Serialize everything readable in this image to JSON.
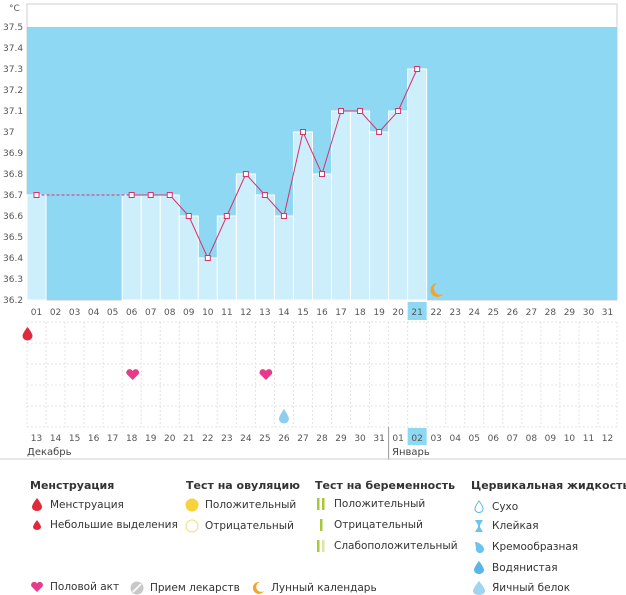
{
  "chart_data": {
    "type": "bar",
    "unit": "°C",
    "ylim": [
      36.2,
      37.5
    ],
    "yticks": [
      "36.2",
      "36.3",
      "36.4",
      "36.5",
      "36.6",
      "36.7",
      "36.8",
      "36.9",
      "37",
      "37.1",
      "37.2",
      "37.3",
      "37.4",
      "37.5"
    ],
    "cycle_days": [
      "01",
      "02",
      "03",
      "04",
      "05",
      "06",
      "07",
      "08",
      "09",
      "10",
      "11",
      "12",
      "13",
      "14",
      "15",
      "16",
      "17",
      "18",
      "19",
      "20",
      "21",
      "22",
      "23",
      "24",
      "25",
      "26",
      "27",
      "28",
      "29",
      "30",
      "31"
    ],
    "current_day": "21",
    "values": [
      36.7,
      null,
      null,
      null,
      null,
      36.7,
      36.7,
      36.7,
      36.6,
      36.4,
      36.6,
      36.8,
      36.7,
      36.6,
      37.0,
      36.8,
      37.1,
      37.1,
      37.0,
      37.1,
      37.3,
      null,
      null,
      null,
      null,
      null,
      null,
      null,
      null,
      null,
      null
    ],
    "dates": [
      {
        "t": "13",
        "weekend": true
      },
      {
        "t": "14",
        "weekend": false
      },
      {
        "t": "15",
        "weekend": false
      },
      {
        "t": "16",
        "weekend": false
      },
      {
        "t": "17",
        "weekend": false
      },
      {
        "t": "18",
        "weekend": false
      },
      {
        "t": "19",
        "weekend": true
      },
      {
        "t": "20",
        "weekend": true
      },
      {
        "t": "21",
        "weekend": false
      },
      {
        "t": "22",
        "weekend": false
      },
      {
        "t": "23",
        "weekend": false
      },
      {
        "t": "24",
        "weekend": false
      },
      {
        "t": "25",
        "weekend": false
      },
      {
        "t": "26",
        "weekend": true
      },
      {
        "t": "27",
        "weekend": true
      },
      {
        "t": "28",
        "weekend": false
      },
      {
        "t": "29",
        "weekend": false
      },
      {
        "t": "30",
        "weekend": false
      },
      {
        "t": "31",
        "weekend": false
      },
      {
        "t": "01",
        "weekend": false
      },
      {
        "t": "02",
        "weekend": true,
        "today": true
      },
      {
        "t": "03",
        "weekend": true
      },
      {
        "t": "04",
        "weekend": false
      },
      {
        "t": "05",
        "weekend": false
      },
      {
        "t": "06",
        "weekend": false
      },
      {
        "t": "07",
        "weekend": false
      },
      {
        "t": "08",
        "weekend": false
      },
      {
        "t": "09",
        "weekend": true
      },
      {
        "t": "10",
        "weekend": true
      },
      {
        "t": "11",
        "weekend": false
      },
      {
        "t": "12",
        "weekend": false
      }
    ],
    "months": [
      {
        "label": "Декабрь"
      },
      {
        "label": "Январь"
      }
    ],
    "markers": {
      "menstruation": [
        "01"
      ],
      "intercourse": [
        "06",
        "13"
      ],
      "egg_white": [
        "14"
      ],
      "moon": [
        "22"
      ]
    }
  },
  "colors": {
    "band": "#8fd8f4",
    "bar": "#cdeefb",
    "bar_edge": "#ffffff",
    "line": "#d6336c",
    "current_day_bg": "#8fd8f4",
    "weekend": "#d6336c"
  },
  "legend": {
    "menstruation": {
      "title": "Менструация",
      "items": [
        "Менструация",
        "Небольшие выделения"
      ]
    },
    "ovulation": {
      "title": "Тест на овуляцию",
      "items": [
        "Положительный",
        "Отрицательный"
      ]
    },
    "pregnancy": {
      "title": "Тест на беременность",
      "items": [
        "Положительный",
        "Отрицательный",
        "Слабоположительный"
      ]
    },
    "cervical": {
      "title": "Цервикальная жидкость",
      "items": [
        "Сухо",
        "Клейкая",
        "Кремообразная",
        "Водянистая",
        "Яичный белок"
      ]
    },
    "other": [
      "Половой акт",
      "Прием лекарств",
      "Лунный календарь"
    ]
  }
}
